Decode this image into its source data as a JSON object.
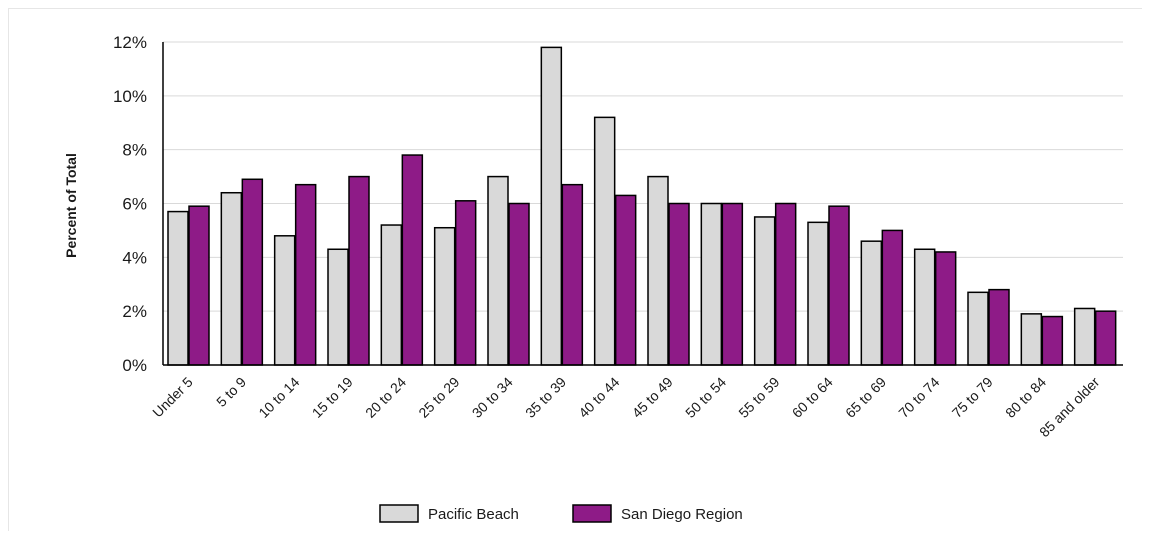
{
  "chart_data": {
    "type": "bar",
    "title": "",
    "xlabel": "",
    "ylabel": "Percent of Total",
    "ylim": [
      0,
      12
    ],
    "yticks": [
      0,
      2,
      4,
      6,
      8,
      10,
      12
    ],
    "ytick_labels": [
      "0%",
      "2%",
      "4%",
      "6%",
      "8%",
      "10%",
      "12%"
    ],
    "grid": true,
    "legend_position": "bottom",
    "categories": [
      "Under 5",
      "5 to 9",
      "10 to 14",
      "15 to 19",
      "20 to 24",
      "25 to 29",
      "30 to 34",
      "35 to 39",
      "40 to 44",
      "45 to 49",
      "50 to 54",
      "55 to 59",
      "60 to 64",
      "65 to 69",
      "70 to 74",
      "75 to 79",
      "80 to 84",
      "85 and older"
    ],
    "series": [
      {
        "name": "Pacific Beach",
        "color": "#d9d9d9",
        "values": [
          5.7,
          6.4,
          4.8,
          4.3,
          5.2,
          5.1,
          7.0,
          11.8,
          9.2,
          7.0,
          6.0,
          5.5,
          5.3,
          4.6,
          4.3,
          2.7,
          1.9,
          2.1
        ]
      },
      {
        "name": "San Diego Region",
        "color": "#8e1b87",
        "values": [
          5.9,
          6.9,
          6.7,
          7.0,
          7.8,
          6.1,
          6.0,
          6.7,
          6.3,
          6.0,
          6.0,
          6.0,
          5.9,
          5.0,
          4.2,
          2.8,
          1.8,
          2.0
        ]
      }
    ]
  }
}
